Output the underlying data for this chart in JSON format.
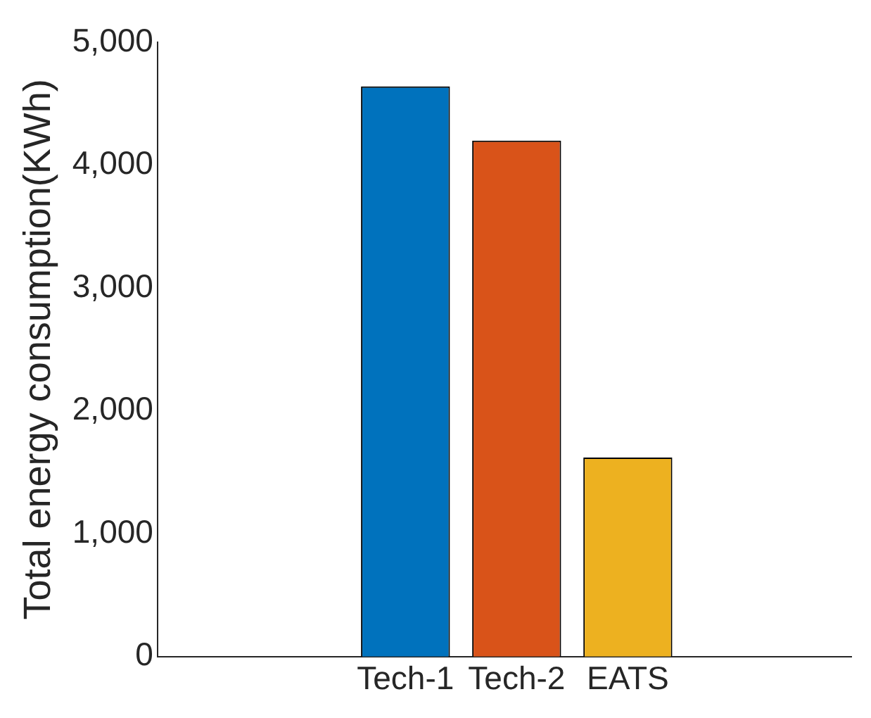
{
  "chart_data": {
    "type": "bar",
    "ylabel": "Total energy consumption(KWh)",
    "categories": [
      "Tech-1",
      "Tech-2",
      "EATS"
    ],
    "values": [
      4640,
      4200,
      1620
    ],
    "colors": [
      "#0072bd",
      "#d95319",
      "#edb120"
    ],
    "ylim": [
      0,
      5000
    ],
    "yticks": [
      {
        "value": 0,
        "label": "0"
      },
      {
        "value": 1000,
        "label": "1,000"
      },
      {
        "value": 2000,
        "label": "2,000"
      },
      {
        "value": 3000,
        "label": "3,000"
      },
      {
        "value": 4000,
        "label": "4,000"
      },
      {
        "value": 5000,
        "label": "5,000"
      }
    ],
    "grid": false,
    "legend": false
  }
}
